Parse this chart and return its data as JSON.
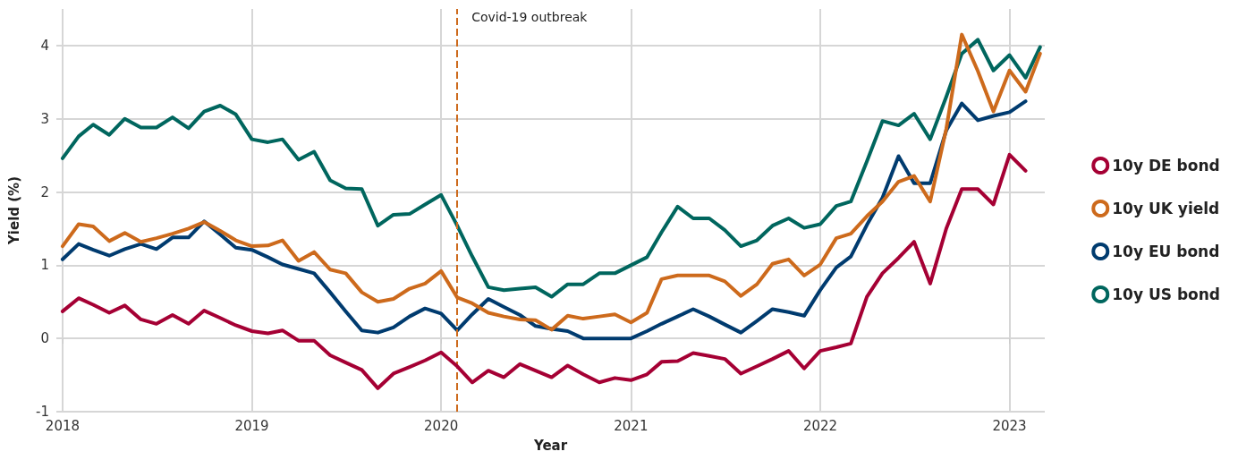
{
  "chart_data": {
    "type": "line",
    "xlabel": "Year",
    "ylabel": "Yield (%)",
    "x": [
      "2018-01",
      "2018-02",
      "2018-03",
      "2018-04",
      "2018-05",
      "2018-06",
      "2018-07",
      "2018-08",
      "2018-09",
      "2018-10",
      "2018-11",
      "2018-12",
      "2019-01",
      "2019-02",
      "2019-03",
      "2019-04",
      "2019-05",
      "2019-06",
      "2019-07",
      "2019-08",
      "2019-09",
      "2019-10",
      "2019-11",
      "2019-12",
      "2020-01",
      "2020-02",
      "2020-03",
      "2020-04",
      "2020-05",
      "2020-06",
      "2020-07",
      "2020-08",
      "2020-09",
      "2020-10",
      "2020-11",
      "2020-12",
      "2021-01",
      "2021-02",
      "2021-03",
      "2021-04",
      "2021-05",
      "2021-06",
      "2021-07",
      "2021-08",
      "2021-09",
      "2021-10",
      "2021-11",
      "2021-12",
      "2022-01",
      "2022-02",
      "2022-03",
      "2022-04",
      "2022-05",
      "2022-06",
      "2022-07",
      "2022-08",
      "2022-09",
      "2022-10",
      "2022-11",
      "2022-12",
      "2023-01",
      "2023-02",
      "2023-03"
    ],
    "series": [
      {
        "name": "10y DE bond",
        "color": "#a50034",
        "values": [
          0.37,
          0.55,
          0.46,
          0.35,
          0.45,
          0.26,
          0.2,
          0.32,
          0.2,
          0.38,
          0.28,
          0.18,
          0.1,
          0.07,
          0.11,
          -0.03,
          -0.03,
          -0.23,
          -0.33,
          -0.43,
          -0.68,
          -0.48,
          -0.39,
          -0.3,
          -0.19,
          -0.38,
          -0.6,
          -0.44,
          -0.53,
          -0.35,
          -0.44,
          -0.53,
          -0.37,
          -0.49,
          -0.6,
          -0.54,
          -0.57,
          -0.49,
          -0.32,
          -0.31,
          -0.2,
          -0.24,
          -0.28,
          -0.48,
          -0.38,
          -0.28,
          -0.17,
          -0.41,
          -0.17,
          -0.12,
          -0.07,
          0.57,
          0.89,
          1.1,
          1.32,
          0.75,
          1.5,
          2.04,
          2.04,
          1.83,
          2.51,
          2.29,
          null
        ]
      },
      {
        "name": "10y UK yield",
        "color": "#cd6a1c",
        "values": [
          1.26,
          1.56,
          1.53,
          1.33,
          1.44,
          1.32,
          1.37,
          1.43,
          1.5,
          1.59,
          1.47,
          1.34,
          1.26,
          1.27,
          1.34,
          1.06,
          1.18,
          0.94,
          0.89,
          0.63,
          0.5,
          0.54,
          0.68,
          0.75,
          0.92,
          0.56,
          0.48,
          0.35,
          0.3,
          0.26,
          0.25,
          0.12,
          0.31,
          0.27,
          0.3,
          0.33,
          0.22,
          0.35,
          0.81,
          0.86,
          0.86,
          0.86,
          0.78,
          0.58,
          0.74,
          1.02,
          1.08,
          0.86,
          1.01,
          1.37,
          1.43,
          1.67,
          1.87,
          2.14,
          2.22,
          1.87,
          2.86,
          4.15,
          3.65,
          3.1,
          3.66,
          3.37,
          3.89
        ]
      },
      {
        "name": "10y EU bond",
        "color": "#003b6f",
        "values": [
          1.08,
          1.29,
          1.21,
          1.13,
          1.22,
          1.29,
          1.22,
          1.38,
          1.38,
          1.6,
          1.42,
          1.24,
          1.21,
          1.11,
          1.01,
          0.95,
          0.89,
          0.63,
          0.37,
          0.11,
          0.08,
          0.15,
          0.3,
          0.41,
          0.34,
          0.11,
          0.33,
          0.54,
          0.43,
          0.32,
          0.17,
          0.13,
          0.1,
          0.0,
          0.0,
          0.0,
          0.0,
          0.1,
          0.2,
          0.3,
          0.4,
          0.3,
          0.19,
          0.08,
          0.24,
          0.4,
          0.36,
          0.31,
          0.66,
          0.97,
          1.12,
          1.55,
          1.92,
          2.49,
          2.12,
          2.12,
          2.84,
          3.21,
          2.98,
          3.04,
          3.09,
          3.24,
          null
        ]
      },
      {
        "name": "10y US bond",
        "color": "#00665e",
        "values": [
          2.46,
          2.76,
          2.92,
          2.78,
          3.0,
          2.88,
          2.88,
          3.02,
          2.87,
          3.1,
          3.18,
          3.06,
          2.72,
          2.68,
          2.72,
          2.44,
          2.55,
          2.16,
          2.05,
          2.04,
          1.54,
          1.69,
          1.7,
          1.83,
          1.96,
          1.54,
          1.12,
          0.7,
          0.66,
          0.68,
          0.7,
          0.57,
          0.74,
          0.74,
          0.89,
          0.89,
          1.0,
          1.11,
          1.45,
          1.8,
          1.64,
          1.64,
          1.48,
          1.26,
          1.34,
          1.54,
          1.64,
          1.51,
          1.56,
          1.81,
          1.87,
          2.42,
          2.97,
          2.91,
          3.07,
          2.72,
          3.3,
          3.89,
          4.08,
          3.66,
          3.87,
          3.56,
          3.98
        ]
      }
    ],
    "xlim": [
      "2017-12-20",
      "2023-03-10"
    ],
    "xticks": [
      "2018",
      "2019",
      "2020",
      "2021",
      "2022",
      "2023"
    ],
    "ylim": [
      -1,
      4.5
    ],
    "yticks": [
      -1,
      0,
      1,
      2,
      3,
      4
    ],
    "ref_lines": [
      {
        "axis": "x",
        "value": "2020-02",
        "label": "Covid-19 outbreak",
        "color": "#cd6a1c",
        "line_style": "dashed"
      }
    ],
    "grid": true,
    "legend": "right",
    "marker": "none",
    "line_style": "solid"
  }
}
